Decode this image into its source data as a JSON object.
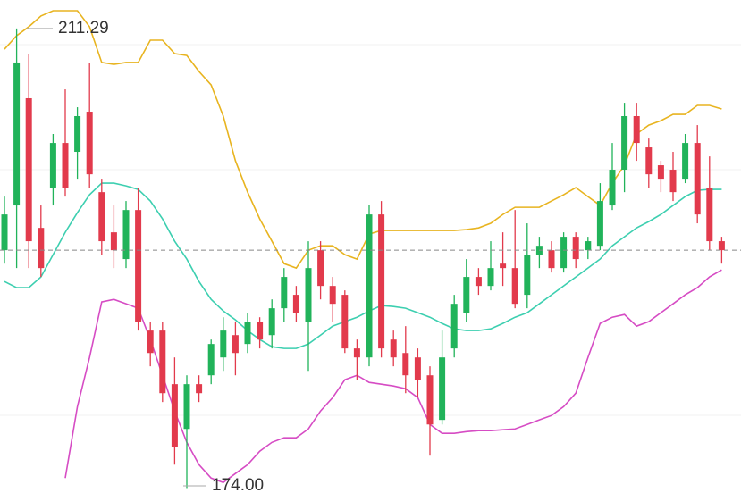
{
  "chart_data": {
    "type": "candlestick",
    "ylim": [
      173.6,
      213.6
    ],
    "up_color": "#21b35a",
    "down_color": "#e23a4c",
    "last_price_line": true,
    "open": [
      193.3,
      196.93,
      205.63,
      195.11,
      198.38,
      202.0,
      201.28,
      204.54,
      198.01,
      194.75,
      192.58,
      196.56,
      186.78,
      186.78,
      182.43,
      178.8,
      182.43,
      183.15,
      184.6,
      186.41,
      185.69,
      187.5,
      186.41,
      188.59,
      189.68,
      187.5,
      193.3,
      190.4,
      189.68,
      185.33,
      184.6,
      196.2,
      186.05,
      184.96,
      184.6,
      183.15,
      179.53,
      185.33,
      188.23,
      191.13,
      190.4,
      192.21,
      191.85,
      189.68,
      192.94,
      193.3,
      191.85,
      194.39,
      193.3,
      193.66,
      196.93,
      199.83,
      204.18,
      201.64,
      200.19,
      199.83,
      199.1,
      202.0,
      198.38,
      194.03
    ],
    "high": [
      197.65,
      211.29,
      209.25,
      196.93,
      202.73,
      206.35,
      204.9,
      208.53,
      199.1,
      196.93,
      197.29,
      198.38,
      187.5,
      187.5,
      184.6,
      183.15,
      183.15,
      186.05,
      187.86,
      187.5,
      188.23,
      187.86,
      189.31,
      191.85,
      190.4,
      194.03,
      194.03,
      191.13,
      190.04,
      186.05,
      196.93,
      197.29,
      186.78,
      187.14,
      185.33,
      183.88,
      186.78,
      189.68,
      192.58,
      191.85,
      194.03,
      194.75,
      196.56,
      195.48,
      194.39,
      194.03,
      194.75,
      194.75,
      194.39,
      198.74,
      202.0,
      205.26,
      205.26,
      202.36,
      200.55,
      201.28,
      202.73,
      203.45,
      200.91,
      194.39
    ],
    "low": [
      192.21,
      191.85,
      191.85,
      191.13,
      196.93,
      197.65,
      199.1,
      198.38,
      192.94,
      191.85,
      191.85,
      186.78,
      183.88,
      180.98,
      175.9,
      174.0,
      180.98,
      182.43,
      183.51,
      183.15,
      184.96,
      185.33,
      185.33,
      187.5,
      187.5,
      183.51,
      189.31,
      187.5,
      184.96,
      182.79,
      183.88,
      184.6,
      183.88,
      181.7,
      181.34,
      176.63,
      179.16,
      184.6,
      187.5,
      189.68,
      190.04,
      190.4,
      188.59,
      188.59,
      191.85,
      191.49,
      191.49,
      191.85,
      192.58,
      193.3,
      196.56,
      198.01,
      200.55,
      198.38,
      198.01,
      197.29,
      198.74,
      195.48,
      193.3,
      192.21
    ],
    "close": [
      196.2,
      208.53,
      194.03,
      191.85,
      202.0,
      198.38,
      204.18,
      199.46,
      194.03,
      193.3,
      196.56,
      187.5,
      184.96,
      181.7,
      177.35,
      182.43,
      181.7,
      185.69,
      186.78,
      184.96,
      187.5,
      186.05,
      188.59,
      191.13,
      188.23,
      191.85,
      190.4,
      188.95,
      185.33,
      184.6,
      196.2,
      185.33,
      184.6,
      183.15,
      182.79,
      179.16,
      184.6,
      188.95,
      191.13,
      190.4,
      191.85,
      191.85,
      188.95,
      192.94,
      193.66,
      191.85,
      194.39,
      192.58,
      194.03,
      197.29,
      199.83,
      204.18,
      202.0,
      199.46,
      199.1,
      198.01,
      202.0,
      196.2,
      194.03,
      193.3
    ],
    "series": [
      {
        "color": "#e8b420",
        "values": [
          209.61,
          210.7,
          211.43,
          212.3,
          212.73,
          212.73,
          212.73,
          211.43,
          208.53,
          208.38,
          208.53,
          208.53,
          210.34,
          210.34,
          209.25,
          209.1,
          207.8,
          206.71,
          204.18,
          200.55,
          198.01,
          195.84,
          194.03,
          192.21,
          191.85,
          193.3,
          193.66,
          193.66,
          192.94,
          192.58,
          194.61,
          194.9,
          194.9,
          194.9,
          194.9,
          194.9,
          194.9,
          194.9,
          194.97,
          195.11,
          195.48,
          196.2,
          196.78,
          196.78,
          196.78,
          197.29,
          197.8,
          198.38,
          197.65,
          196.93,
          198.74,
          200.19,
          202.73,
          203.45,
          203.81,
          204.32,
          204.32,
          205.05,
          205.05,
          204.76
        ]
      },
      {
        "color": "#3dcfb0",
        "values": [
          190.76,
          190.26,
          190.26,
          191.13,
          192.94,
          194.75,
          196.35,
          197.8,
          198.74,
          198.74,
          198.52,
          198.23,
          197.29,
          195.84,
          194.03,
          192.58,
          190.76,
          189.31,
          188.37,
          187.65,
          186.78,
          186.05,
          185.47,
          185.33,
          185.33,
          185.69,
          186.41,
          187.14,
          187.5,
          187.86,
          188.37,
          188.81,
          188.73,
          188.59,
          188.23,
          187.86,
          187.36,
          186.92,
          186.78,
          186.78,
          186.92,
          187.36,
          187.86,
          188.23,
          188.95,
          189.68,
          190.4,
          191.13,
          191.85,
          192.58,
          193.66,
          194.39,
          195.11,
          195.62,
          196.2,
          196.93,
          197.65,
          198.16,
          198.23,
          198.23
        ]
      },
      {
        "color": "#d64cc4",
        "values": [
          null,
          null,
          null,
          null,
          null,
          174.81,
          180.61,
          184.6,
          189.1,
          189.31,
          188.95,
          188.59,
          186.05,
          183.15,
          180.25,
          177.71,
          175.9,
          174.81,
          174.45,
          175.18,
          175.9,
          176.99,
          177.71,
          178.08,
          178.08,
          178.8,
          180.25,
          181.34,
          182.79,
          183.15,
          182.57,
          182.43,
          182.28,
          182.06,
          181.34,
          179.16,
          178.44,
          178.44,
          178.58,
          178.66,
          178.66,
          178.73,
          178.8,
          179.16,
          179.53,
          179.89,
          180.61,
          181.7,
          184.6,
          187.36,
          187.86,
          188.08,
          187.14,
          187.5,
          188.23,
          188.95,
          189.68,
          190.26,
          191.13,
          191.7
        ]
      }
    ],
    "annotations": [
      {
        "label": "211.29",
        "value": 211.29
      },
      {
        "label": "174.00",
        "value": 174
      }
    ]
  }
}
